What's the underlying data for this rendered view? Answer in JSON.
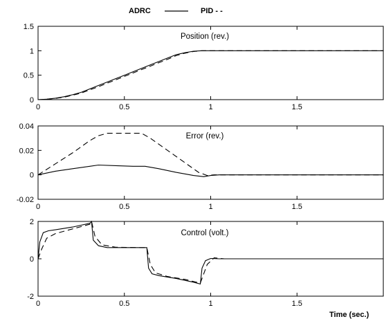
{
  "legend": {
    "adrc_label": "ADRC",
    "pid_label": "PID - -"
  },
  "xlabel": "Time  (sec.)",
  "chart_data": [
    {
      "type": "line",
      "title": "Position (rev.)",
      "xlim": [
        0,
        2
      ],
      "ylim": [
        0,
        1.5
      ],
      "xticks": [
        0,
        0.5,
        1,
        1.5
      ],
      "xtick_labels": [
        "0",
        "0.5",
        "1",
        "1.5"
      ],
      "yticks": [
        0,
        0.5,
        1,
        1.5
      ],
      "ytick_labels": [
        "0",
        "0.5",
        "1",
        "1.5"
      ],
      "series": [
        {
          "name": "ADRC",
          "style": "solid",
          "x": [
            0,
            0.05,
            0.1,
            0.15,
            0.2,
            0.25,
            0.3,
            0.35,
            0.4,
            0.45,
            0.5,
            0.55,
            0.6,
            0.65,
            0.7,
            0.75,
            0.8,
            0.85,
            0.9,
            0.95,
            1.0,
            1.5,
            2.0
          ],
          "y": [
            0,
            0.01,
            0.03,
            0.06,
            0.1,
            0.15,
            0.22,
            0.29,
            0.36,
            0.43,
            0.5,
            0.57,
            0.64,
            0.71,
            0.78,
            0.85,
            0.92,
            0.96,
            0.99,
            1.0,
            1.0,
            1.0,
            1.0
          ]
        },
        {
          "name": "PID",
          "style": "dashed",
          "x": [
            0,
            0.05,
            0.1,
            0.15,
            0.2,
            0.25,
            0.3,
            0.35,
            0.4,
            0.45,
            0.5,
            0.55,
            0.6,
            0.65,
            0.7,
            0.75,
            0.8,
            0.85,
            0.9,
            0.95,
            1.0,
            1.5,
            2.0
          ],
          "y": [
            0,
            0.008,
            0.025,
            0.05,
            0.09,
            0.135,
            0.2,
            0.265,
            0.335,
            0.405,
            0.475,
            0.545,
            0.615,
            0.685,
            0.755,
            0.825,
            0.9,
            0.95,
            0.985,
            1.0,
            1.0,
            1.0,
            1.0
          ]
        }
      ]
    },
    {
      "type": "line",
      "title": "Error (rev.)",
      "xlim": [
        0,
        2
      ],
      "ylim": [
        -0.02,
        0.04
      ],
      "xticks": [
        0,
        0.5,
        1,
        1.5
      ],
      "xtick_labels": [
        "0",
        "0.5",
        "1",
        "1.5"
      ],
      "yticks": [
        -0.02,
        0,
        0.02,
        0.04
      ],
      "ytick_labels": [
        "-0.02",
        "0",
        "0.02",
        "0.04"
      ],
      "series": [
        {
          "name": "ADRC",
          "style": "solid",
          "x": [
            0,
            0.1,
            0.2,
            0.3,
            0.35,
            0.45,
            0.55,
            0.62,
            0.7,
            0.8,
            0.9,
            0.96,
            1.0,
            1.05,
            1.5,
            2.0
          ],
          "y": [
            0,
            0.003,
            0.005,
            0.007,
            0.008,
            0.0075,
            0.007,
            0.007,
            0.005,
            0.002,
            -0.0005,
            -0.0015,
            -0.0005,
            0,
            0,
            0
          ]
        },
        {
          "name": "PID",
          "style": "dashed",
          "x": [
            0,
            0.1,
            0.2,
            0.3,
            0.35,
            0.4,
            0.5,
            0.6,
            0.65,
            0.75,
            0.85,
            0.93,
            0.98,
            1.02,
            1.5,
            2.0
          ],
          "y": [
            0,
            0.009,
            0.018,
            0.028,
            0.032,
            0.034,
            0.034,
            0.034,
            0.03,
            0.02,
            0.01,
            0.002,
            -0.0005,
            0,
            0,
            0
          ]
        }
      ]
    },
    {
      "type": "line",
      "title": "Control (volt.)",
      "xlim": [
        0,
        2
      ],
      "ylim": [
        -2,
        2
      ],
      "xticks": [
        0,
        0.5,
        1,
        1.5
      ],
      "xtick_labels": [
        "0",
        "0.5",
        "1",
        "1.5"
      ],
      "yticks": [
        -2,
        0,
        2
      ],
      "ytick_labels": [
        "-2",
        "0",
        "2"
      ],
      "series": [
        {
          "name": "ADRC",
          "style": "solid",
          "x": [
            0,
            0.01,
            0.03,
            0.06,
            0.1,
            0.2,
            0.3,
            0.31,
            0.32,
            0.35,
            0.4,
            0.5,
            0.6,
            0.63,
            0.64,
            0.66,
            0.7,
            0.8,
            0.9,
            0.94,
            0.95,
            0.97,
            1.0,
            1.05,
            1.5,
            2.0
          ],
          "y": [
            0,
            0.9,
            1.4,
            1.5,
            1.55,
            1.7,
            1.9,
            2.0,
            1.0,
            0.7,
            0.6,
            0.6,
            0.6,
            0.6,
            -0.5,
            -0.8,
            -0.9,
            -1.05,
            -1.25,
            -1.35,
            -0.5,
            -0.1,
            0.02,
            0,
            0,
            0
          ]
        },
        {
          "name": "PID",
          "style": "dashed",
          "x": [
            0,
            0.02,
            0.05,
            0.1,
            0.2,
            0.3,
            0.31,
            0.33,
            0.37,
            0.45,
            0.6,
            0.63,
            0.65,
            0.68,
            0.75,
            0.85,
            0.94,
            0.96,
            0.98,
            1.02,
            1.08,
            1.5,
            2.0
          ],
          "y": [
            0,
            0.5,
            1.1,
            1.35,
            1.6,
            1.85,
            2.0,
            1.2,
            0.75,
            0.62,
            0.6,
            0.6,
            -0.3,
            -0.75,
            -0.95,
            -1.1,
            -1.3,
            -0.8,
            -0.3,
            0.05,
            0,
            0,
            0
          ]
        }
      ]
    }
  ]
}
